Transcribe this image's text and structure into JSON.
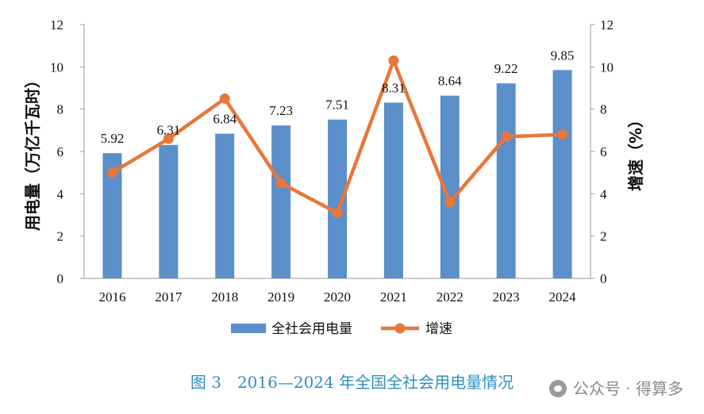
{
  "chart_data": {
    "type": "bar",
    "categories": [
      "2016",
      "2017",
      "2018",
      "2019",
      "2020",
      "2021",
      "2022",
      "2023",
      "2024"
    ],
    "series": [
      {
        "name": "全社会用电量",
        "type": "bar",
        "axis": "left",
        "values": [
          5.92,
          6.31,
          6.84,
          7.23,
          7.51,
          8.31,
          8.64,
          9.22,
          9.85
        ],
        "labels": [
          "5.92",
          "6.31",
          "6.84",
          "7.23",
          "7.51",
          "8.31",
          "8.64",
          "9.22",
          "9.85"
        ]
      },
      {
        "name": "增速",
        "type": "line",
        "axis": "right",
        "values": [
          5.0,
          6.6,
          8.5,
          4.5,
          3.1,
          10.3,
          3.6,
          6.7,
          6.8
        ]
      }
    ],
    "ylabel": "用电量（万亿千瓦时）",
    "y2label": "增速（%）",
    "ylim": [
      0,
      12
    ],
    "y2lim": [
      0,
      12
    ],
    "yticks": [
      "0",
      "2",
      "4",
      "6",
      "8",
      "10",
      "12"
    ],
    "y2ticks": [
      "0",
      "2",
      "4",
      "6",
      "8",
      "10",
      "12"
    ],
    "legend_position": "bottom",
    "grid": false,
    "colors": {
      "bar": "#5b8fc9",
      "line": "#e8773a"
    }
  },
  "caption": "图 3　2016—2024 年全国全社会用电量情况",
  "watermark": "公众号 · 得算多"
}
